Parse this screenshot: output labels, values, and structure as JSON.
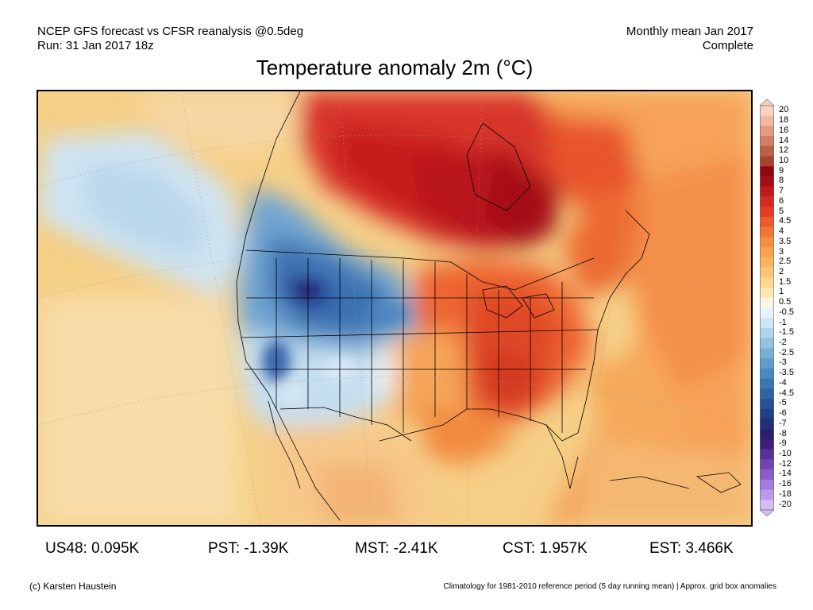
{
  "header": {
    "left_line1": "NCEP GFS forecast vs CFSR reanalysis @0.5deg",
    "left_line2": "Run: 31 Jan 2017 18z",
    "right_line1": "Monthly mean Jan 2017",
    "right_line2": "Complete"
  },
  "title": "Temperature anomaly 2m (°C)",
  "colorbar": {
    "labels": [
      "20",
      "18",
      "16",
      "14",
      "12",
      "10",
      "9",
      "8",
      "7",
      "6",
      "5",
      "4.5",
      "4",
      "3.5",
      "3",
      "2.5",
      "2",
      "1.5",
      "1",
      "0.5",
      "-0.5",
      "-1",
      "-1.5",
      "-2",
      "-2.5",
      "-3",
      "-3.5",
      "-4",
      "-4.5",
      "-5",
      "-6",
      "-7",
      "-8",
      "-9",
      "-10",
      "-12",
      "-14",
      "-16",
      "-18",
      "-20"
    ],
    "colors": [
      "#f7d3c2",
      "#f0b9a2",
      "#e39c82",
      "#d07e64",
      "#bd6047",
      "#a8432d",
      "#8f0a10",
      "#a30f15",
      "#c01a1e",
      "#d42a22",
      "#e43b26",
      "#ec5a2c",
      "#f27535",
      "#f68e42",
      "#f9a350",
      "#fbb560",
      "#fcc774",
      "#fdd88e",
      "#fde8b0",
      "#fdf6e4",
      "#e8f2fa",
      "#cde4f3",
      "#b0d4ec",
      "#94c2e2",
      "#78afd7",
      "#5f9ccb",
      "#4a89bf",
      "#3a76b2",
      "#2e64a5",
      "#255296",
      "#1f4086",
      "#232f78",
      "#2a1f6c",
      "#3d1f7c",
      "#57309a",
      "#7045b6",
      "#8a5ccd",
      "#a37ade",
      "#bc9aea",
      "#d5bdf4"
    ]
  },
  "map": {
    "grid_color": "#aaaaaa",
    "boundary_color": "#000000"
  },
  "stats": [
    {
      "label": "US48:",
      "value": "0.095K"
    },
    {
      "label": "PST:",
      "value": "-1.39K"
    },
    {
      "label": "MST:",
      "value": "-2.41K"
    },
    {
      "label": "CST:",
      "value": "1.957K"
    },
    {
      "label": "EST:",
      "value": "3.466K"
    }
  ],
  "footer": {
    "credit": "(c) Karsten Haustein",
    "note": "Climatology for 1981-2010 reference period (5 day running mean) | Approx. grid box anomalies"
  }
}
